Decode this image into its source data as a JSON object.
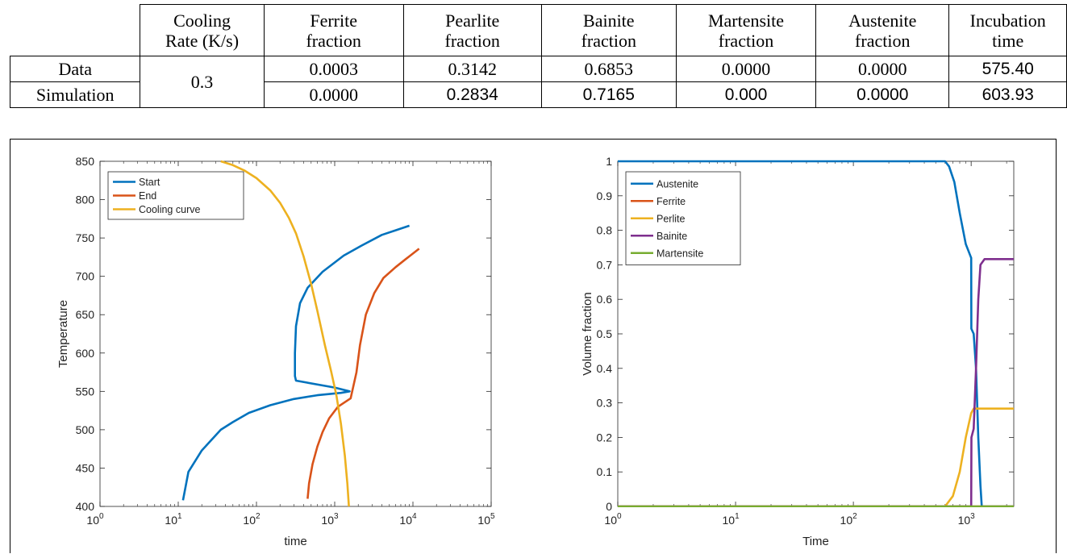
{
  "table": {
    "header": [
      "",
      "Cooling\nRate (K/s)",
      "Ferrite\nfraction",
      "Pearlite\nfraction",
      "Bainite\nfraction",
      "Martensite\nfraction",
      "Austenite\nfraction",
      "Incubation\ntime"
    ],
    "cooling_rate": "0.3",
    "rows": [
      {
        "label": "Data",
        "values": [
          "0.0003",
          "0.3142",
          "0.6853",
          "0.0000",
          "0.0000",
          "575.40"
        ]
      },
      {
        "label": "Simulation",
        "values": [
          "0.0000",
          "0.2834",
          "0.7165",
          "0.000",
          "0.0000",
          "603.93"
        ]
      }
    ]
  },
  "chart_data": [
    {
      "type": "line",
      "xlabel": "time",
      "ylabel": "Temperature",
      "xscale": "log",
      "xlim": [
        1,
        100000
      ],
      "ylim": [
        400,
        850
      ],
      "xtick_exponents": [
        "0",
        "1",
        "2",
        "3",
        "4",
        "5"
      ],
      "yticks": [
        400,
        450,
        500,
        550,
        600,
        650,
        700,
        750,
        800,
        850
      ],
      "legend_location": "top-left",
      "series": [
        {
          "name": "Start",
          "color": "#0072BD",
          "points": [
            [
              11.5,
              408
            ],
            [
              13.5,
              445
            ],
            [
              20,
              473
            ],
            [
              35,
              500
            ],
            [
              50,
              510
            ],
            [
              80,
              522
            ],
            [
              150,
              532
            ],
            [
              300,
              540
            ],
            [
              600,
              545
            ],
            [
              1200,
              548
            ],
            [
              1550,
              550
            ],
            [
              1000,
              555
            ],
            [
              320,
              564
            ],
            [
              310,
              570
            ],
            [
              310,
              600
            ],
            [
              320,
              635
            ],
            [
              360,
              665
            ],
            [
              450,
              685
            ],
            [
              700,
              706
            ],
            [
              1300,
              727
            ],
            [
              2200,
              740
            ],
            [
              4000,
              754
            ],
            [
              6000,
              760
            ],
            [
              9000,
              766
            ]
          ]
        },
        {
          "name": "End",
          "color": "#D95319",
          "points": [
            [
              450,
              410
            ],
            [
              470,
              430
            ],
            [
              520,
              455
            ],
            [
              600,
              478
            ],
            [
              700,
              497
            ],
            [
              850,
              515
            ],
            [
              1100,
              530
            ],
            [
              1600,
              541
            ],
            [
              1900,
              575
            ],
            [
              2100,
              610
            ],
            [
              2500,
              650
            ],
            [
              3200,
              678
            ],
            [
              4200,
              698
            ],
            [
              6000,
              712
            ],
            [
              8000,
              722
            ],
            [
              12000,
              736
            ]
          ]
        },
        {
          "name": "Cooling curve",
          "color": "#EDB120",
          "points": [
            [
              35,
              850
            ],
            [
              50,
              845
            ],
            [
              70,
              838
            ],
            [
              100,
              828
            ],
            [
              150,
              812
            ],
            [
              200,
              796
            ],
            [
              260,
              776
            ],
            [
              320,
              756
            ],
            [
              400,
              726
            ],
            [
              500,
              690
            ],
            [
              600,
              655
            ],
            [
              750,
              610
            ],
            [
              900,
              576
            ],
            [
              1050,
              545
            ],
            [
              1200,
              508
            ],
            [
              1350,
              466
            ],
            [
              1450,
              430
            ],
            [
              1520,
              400
            ]
          ]
        }
      ]
    },
    {
      "type": "line",
      "xlabel": "Time",
      "ylabel": "Volume fraction",
      "xscale": "log",
      "xlim": [
        1,
        2300
      ],
      "ylim": [
        0,
        1
      ],
      "xtick_exponents": [
        "0",
        "1",
        "2",
        "3"
      ],
      "yticks": [
        0,
        0.1,
        0.2,
        0.3,
        0.4,
        0.5,
        0.6,
        0.7,
        0.8,
        0.9,
        1
      ],
      "ytick_labels": [
        "0",
        "0.1",
        "0.2",
        "0.3",
        "0.4",
        "0.5",
        "0.6",
        "0.7",
        "0.8",
        "0.9",
        "1"
      ],
      "legend_location": "top-left",
      "series": [
        {
          "name": "Austenite",
          "color": "#0072BD",
          "points": [
            [
              1,
              1
            ],
            [
              600,
              1
            ],
            [
              650,
              0.985
            ],
            [
              720,
              0.94
            ],
            [
              800,
              0.85
            ],
            [
              900,
              0.76
            ],
            [
              1000,
              0.72
            ],
            [
              1003,
              0.515
            ],
            [
              1050,
              0.5
            ],
            [
              1100,
              0.4
            ],
            [
              1150,
              0.2
            ],
            [
              1200,
              0.06
            ],
            [
              1230,
              0
            ],
            [
              2300,
              0
            ]
          ]
        },
        {
          "name": "Ferrite",
          "color": "#D95319",
          "points": [
            [
              1,
              0
            ],
            [
              2300,
              0
            ]
          ]
        },
        {
          "name": "Perlite",
          "color": "#EDB120",
          "points": [
            [
              1,
              0
            ],
            [
              600,
              0
            ],
            [
              700,
              0.03
            ],
            [
              800,
              0.1
            ],
            [
              900,
              0.2
            ],
            [
              1000,
              0.27
            ],
            [
              1050,
              0.2834
            ],
            [
              2300,
              0.2834
            ]
          ]
        },
        {
          "name": "Bainite",
          "color": "#7E2F8E",
          "points": [
            [
              1,
              0
            ],
            [
              1000,
              0
            ],
            [
              1005,
              0.2
            ],
            [
              1050,
              0.225
            ],
            [
              1100,
              0.4
            ],
            [
              1150,
              0.6
            ],
            [
              1200,
              0.7
            ],
            [
              1300,
              0.7165
            ],
            [
              2300,
              0.7165
            ]
          ]
        },
        {
          "name": "Martensite",
          "color": "#77AC30",
          "points": [
            [
              1,
              0
            ],
            [
              2300,
              0
            ]
          ]
        }
      ]
    }
  ]
}
